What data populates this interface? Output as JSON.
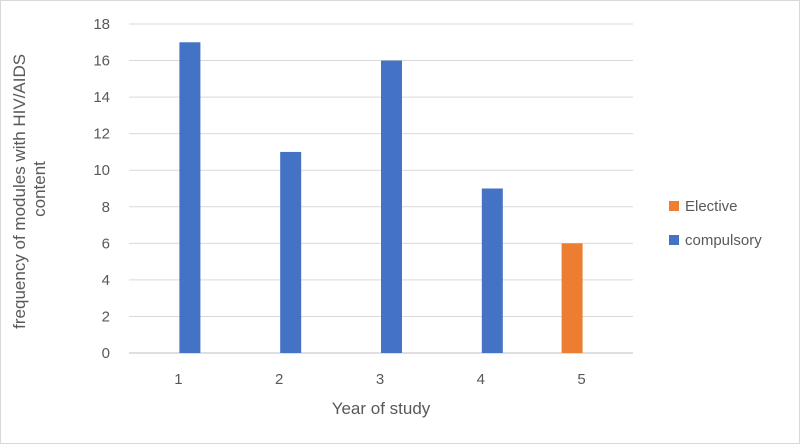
{
  "chart_data": {
    "type": "bar",
    "categories": [
      "1",
      "2",
      "3",
      "4",
      "5"
    ],
    "series": [
      {
        "name": "Elective",
        "color": "#ed7d31",
        "values": [
          0,
          0,
          0,
          0,
          6
        ]
      },
      {
        "name": "compulsory",
        "color": "#4472c4",
        "values": [
          17,
          11,
          16,
          9,
          0
        ]
      }
    ],
    "xlabel": "Year of study",
    "ylabel_lines": [
      "frequency of modules with HIV/AIDS",
      "content"
    ],
    "ylim": [
      0,
      18
    ],
    "yticks": [
      "0",
      "2",
      "4",
      "6",
      "8",
      "10",
      "12",
      "14",
      "16",
      "18"
    ],
    "grid": true,
    "legend_position": "right"
  }
}
